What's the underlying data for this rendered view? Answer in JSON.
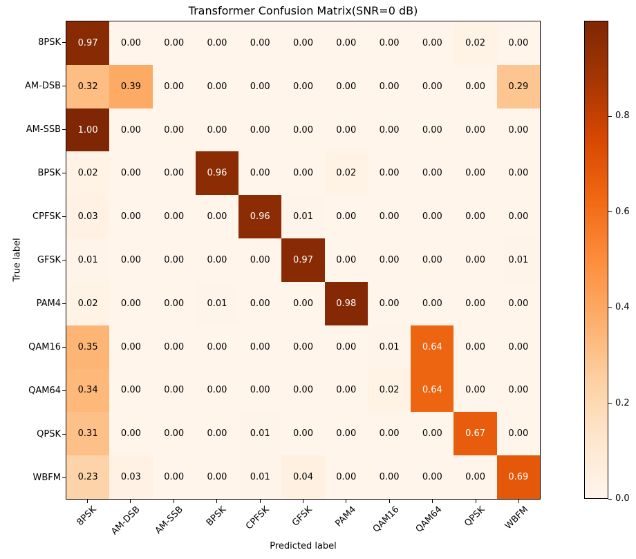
{
  "chart_data": {
    "type": "heatmap",
    "title": "Transformer Confusion Matrix(SNR=0 dB)",
    "xlabel": "Predicted label",
    "ylabel": "True label",
    "x_categories": [
      "8PSK",
      "AM-DSB",
      "AM-SSB",
      "BPSK",
      "CPFSK",
      "GFSK",
      "PAM4",
      "QAM16",
      "QAM64",
      "QPSK",
      "WBFM"
    ],
    "y_categories": [
      "8PSK",
      "AM-DSB",
      "AM-SSB",
      "BPSK",
      "CPFSK",
      "GFSK",
      "PAM4",
      "QAM16",
      "QAM64",
      "QPSK",
      "WBFM"
    ],
    "matrix": [
      [
        0.97,
        0.0,
        0.0,
        0.0,
        0.0,
        0.0,
        0.0,
        0.0,
        0.0,
        0.02,
        0.0
      ],
      [
        0.32,
        0.39,
        0.0,
        0.0,
        0.0,
        0.0,
        0.0,
        0.0,
        0.0,
        0.0,
        0.29
      ],
      [
        1.0,
        0.0,
        0.0,
        0.0,
        0.0,
        0.0,
        0.0,
        0.0,
        0.0,
        0.0,
        0.0
      ],
      [
        0.02,
        0.0,
        0.0,
        0.96,
        0.0,
        0.0,
        0.02,
        0.0,
        0.0,
        0.0,
        0.0
      ],
      [
        0.03,
        0.0,
        0.0,
        0.0,
        0.96,
        0.01,
        0.0,
        0.0,
        0.0,
        0.0,
        0.0
      ],
      [
        0.01,
        0.0,
        0.0,
        0.0,
        0.0,
        0.97,
        0.0,
        0.0,
        0.0,
        0.0,
        0.01
      ],
      [
        0.02,
        0.0,
        0.0,
        0.01,
        0.0,
        0.0,
        0.98,
        0.0,
        0.0,
        0.0,
        0.0
      ],
      [
        0.35,
        0.0,
        0.0,
        0.0,
        0.0,
        0.0,
        0.0,
        0.01,
        0.64,
        0.0,
        0.0
      ],
      [
        0.34,
        0.0,
        0.0,
        0.0,
        0.0,
        0.0,
        0.0,
        0.02,
        0.64,
        0.0,
        0.0
      ],
      [
        0.31,
        0.0,
        0.0,
        0.0,
        0.01,
        0.0,
        0.0,
        0.0,
        0.0,
        0.67,
        0.0
      ],
      [
        0.23,
        0.03,
        0.0,
        0.0,
        0.01,
        0.04,
        0.0,
        0.0,
        0.0,
        0.0,
        0.69
      ]
    ],
    "value_decimals": 2,
    "vmin": 0.0,
    "vmax": 1.0,
    "colormap": "Oranges",
    "colormap_stops": [
      "#fff5eb",
      "#fee6ce",
      "#fdd0a2",
      "#fdae6b",
      "#fd8d3c",
      "#f16913",
      "#d94801",
      "#a63603",
      "#7f2704"
    ],
    "colorbar_ticks": [
      0.0,
      0.2,
      0.4,
      0.6,
      0.8
    ],
    "colorbar_tick_labels": [
      "0.0",
      "0.2",
      "0.4",
      "0.6",
      "0.8"
    ],
    "text_color_threshold": 0.5,
    "cell_text_color_dark_bg": "#ffffff",
    "cell_text_color_light_bg": "#000000",
    "axis_color": "#000000",
    "background_color": "#ffffff",
    "grid": false,
    "colorbar_position": "right"
  }
}
